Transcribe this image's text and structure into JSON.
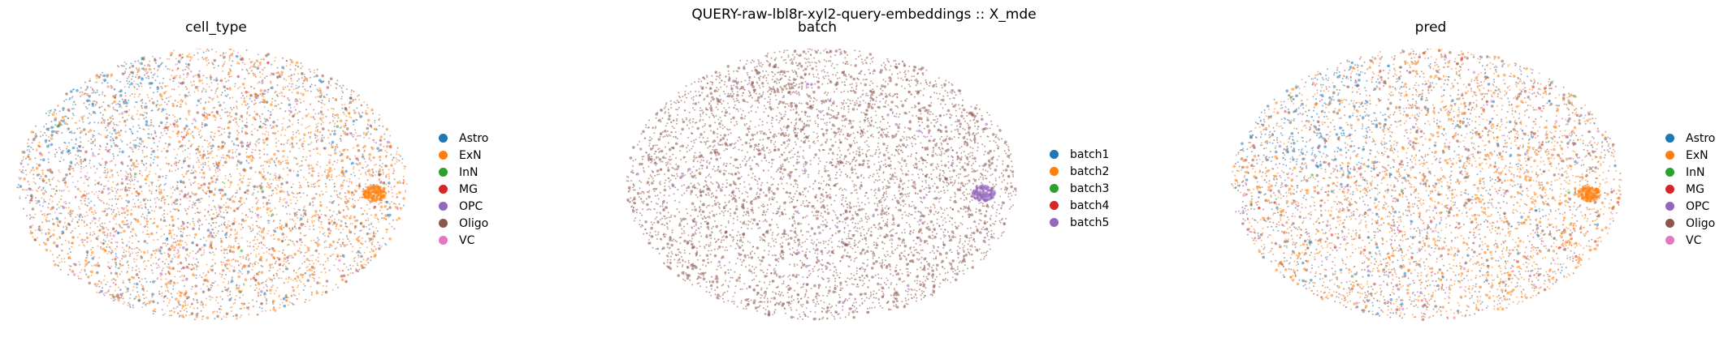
{
  "figure_title": "QUERY-raw-lbl8r-xyl2-query-embeddings :: X_mde",
  "chart_data": [
    {
      "type": "scatter",
      "title": "cell_type",
      "xlabel": "",
      "ylabel": "",
      "axes_visible": false,
      "grid": false,
      "legend_position": "right",
      "categories": [
        "Astro",
        "ExN",
        "InN",
        "MG",
        "OPC",
        "Oligo",
        "VC"
      ],
      "colors": [
        "#1f77b4",
        "#ff7f0e",
        "#2ca02c",
        "#d62728",
        "#9467bd",
        "#8c564b",
        "#e377c2"
      ],
      "composition": [
        0.12,
        0.44,
        0.01,
        0.05,
        0.05,
        0.3,
        0.03
      ]
    },
    {
      "type": "scatter",
      "title": "batch",
      "xlabel": "",
      "ylabel": "",
      "axes_visible": false,
      "grid": false,
      "legend_position": "right",
      "categories": [
        "batch1",
        "batch2",
        "batch3",
        "batch4",
        "batch5"
      ],
      "colors": [
        "#1f77b4",
        "#ff7f0e",
        "#2ca02c",
        "#d62728",
        "#9467bd"
      ],
      "composition": [
        0.0,
        0.0,
        0.0,
        0.0,
        0.0
      ],
      "dominant_color": "#8c564b"
    },
    {
      "type": "scatter",
      "title": "pred",
      "xlabel": "",
      "ylabel": "",
      "axes_visible": false,
      "grid": false,
      "legend_position": "right",
      "categories": [
        "Astro",
        "ExN",
        "InN",
        "MG",
        "OPC",
        "Oligo",
        "VC"
      ],
      "colors": [
        "#1f77b4",
        "#ff7f0e",
        "#2ca02c",
        "#d62728",
        "#9467bd",
        "#8c564b",
        "#e377c2"
      ],
      "composition": [
        0.12,
        0.44,
        0.01,
        0.05,
        0.05,
        0.3,
        0.03
      ]
    }
  ]
}
